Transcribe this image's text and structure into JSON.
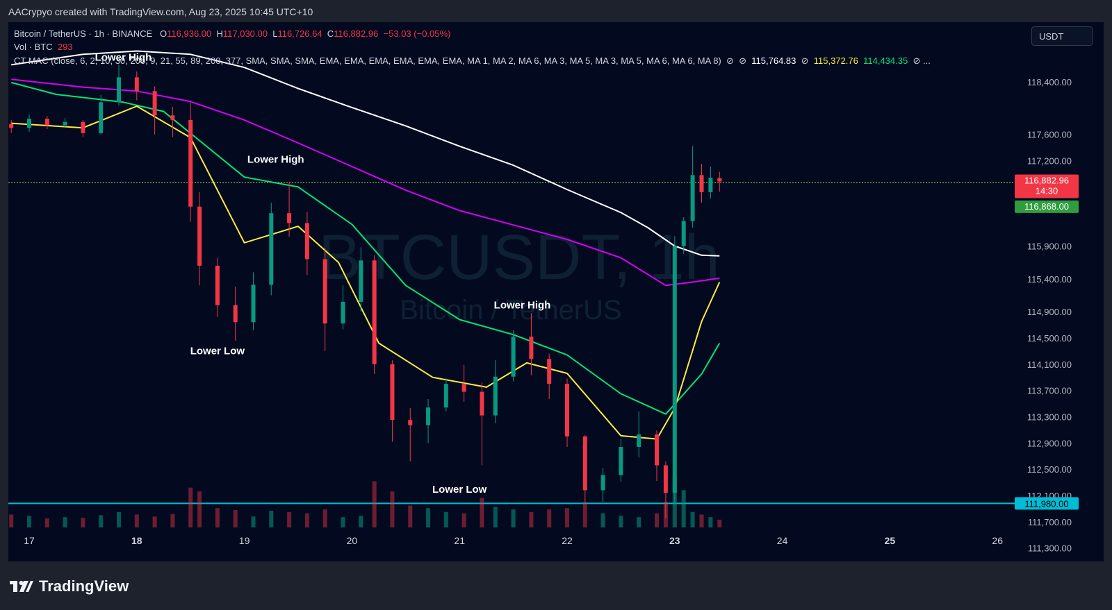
{
  "header": {
    "attribution": "AACrypyo created with TradingView.com, Aug 23, 2025 10:45 UTC+10"
  },
  "legend": {
    "symbol": "Bitcoin / TetherUS · 1h · BINANCE",
    "o_label": "O",
    "o_value": "116,936.00",
    "h_label": "H",
    "h_value": "117,030.00",
    "l_label": "L",
    "l_value": "116,726.64",
    "c_label": "C",
    "c_value": "116,882.96",
    "change": "−53.03 (−0.05%)",
    "vol_label": "Vol · BTC",
    "vol_value": "293",
    "indicator": "CT MAC (close, 6, 2, 10, 30, 200, 9, 21, 55, 89, 200, 377, SMA, SMA, SMA, EMA, EMA, EMA, EMA, EMA, EMA, MA 1, MA 2, MA 6, MA 3, MA 5, MA 3, MA 5, MA 6, MA 6, MA 8)",
    "ma_values": [
      "115,764.83",
      "115,372.76",
      "114,434.35"
    ],
    "ellipsis": "..."
  },
  "currency_button": "USDT",
  "watermark": {
    "line1": "BTCUSDT, 1h",
    "line2": "Bitcoin / TetherUS"
  },
  "brand": "TradingView",
  "colors": {
    "up": "#089981",
    "down": "#f23645",
    "ema_fast": "#ffeb3b",
    "ema_mid": "#00e676",
    "ema_slow": "#d500f9",
    "sma_long": "#ffffff",
    "support": "#00bcd4",
    "resistance": "#8bc34a"
  },
  "chart_data": {
    "type": "candlestick",
    "title": "",
    "x_axis_labels": [
      "17",
      "18",
      "19",
      "20",
      "21",
      "22",
      "23",
      "24",
      "25",
      "26"
    ],
    "y_axis_labels": [
      "118,400.00",
      "117,600.00",
      "117,200.00",
      "115,900.00",
      "115,400.00",
      "114,900.00",
      "114,500.00",
      "114,100.00",
      "113,700.00",
      "113,300.00",
      "112,900.00",
      "112,500.00",
      "112,100.00",
      "111,700.00",
      "111,300.00"
    ],
    "ylim": [
      111000,
      118800
    ],
    "annotations": [
      {
        "text": "Lower High",
        "x": "Aug 17 21:00",
        "y": 118720
      },
      {
        "text": "Lower High",
        "x": "Aug 19 07:00",
        "y": 117170
      },
      {
        "text": "Lower Low",
        "x": "Aug 18 18:00",
        "y": 114250
      },
      {
        "text": "Lower High",
        "x": "Aug 21 14:00",
        "y": 114950
      },
      {
        "text": "Lower Low",
        "x": "Aug 21 00:00",
        "y": 112140
      }
    ],
    "levels": [
      {
        "price": 116868.0,
        "label": "116,868.00",
        "style": "dotted",
        "color": "#8bc34a"
      },
      {
        "price": 111980.0,
        "label": "111,980.00",
        "style": "solid",
        "color": "#00bcd4"
      }
    ],
    "last_price": {
      "value": "116,882.96",
      "countdown": "14:30"
    },
    "series": [
      {
        "type": "sma",
        "color": "#ffffff",
        "points": [
          [
            "Aug 16 20:00",
            118660
          ],
          [
            "Aug 17 12:00",
            118820
          ],
          [
            "Aug 18 00:00",
            118870
          ],
          [
            "Aug 18 12:00",
            118820
          ],
          [
            "Aug 19 00:00",
            118620
          ],
          [
            "Aug 19 12:00",
            118300
          ],
          [
            "Aug 20 00:00",
            118010
          ],
          [
            "Aug 20 12:00",
            117730
          ],
          [
            "Aug 21 00:00",
            117420
          ],
          [
            "Aug 21 12:00",
            117130
          ],
          [
            "Aug 22 00:00",
            116760
          ],
          [
            "Aug 22 12:00",
            116410
          ],
          [
            "Aug 22 18:00",
            116180
          ],
          [
            "Aug 23 00:00",
            115900
          ],
          [
            "Aug 23 06:00",
            115760
          ],
          [
            "Aug 23 10:00",
            115750
          ]
        ]
      },
      {
        "type": "ema",
        "color": "#d500f9",
        "points": [
          [
            "Aug 16 20:00",
            118440
          ],
          [
            "Aug 17 12:00",
            118320
          ],
          [
            "Aug 18 00:00",
            118260
          ],
          [
            "Aug 18 12:00",
            118100
          ],
          [
            "Aug 19 00:00",
            117820
          ],
          [
            "Aug 19 12:00",
            117470
          ],
          [
            "Aug 20 00:00",
            117110
          ],
          [
            "Aug 20 12:00",
            116750
          ],
          [
            "Aug 21 00:00",
            116440
          ],
          [
            "Aug 21 12:00",
            116220
          ],
          [
            "Aug 22 00:00",
            116000
          ],
          [
            "Aug 22 12:00",
            115720
          ],
          [
            "Aug 22 22:00",
            115300
          ],
          [
            "Aug 23 04:00",
            115350
          ],
          [
            "Aug 23 10:00",
            115410
          ]
        ]
      },
      {
        "type": "ema",
        "color": "#00e676",
        "points": [
          [
            "Aug 16 20:00",
            118390
          ],
          [
            "Aug 17 06:00",
            118210
          ],
          [
            "Aug 17 21:00",
            118090
          ],
          [
            "Aug 18 06:00",
            117950
          ],
          [
            "Aug 18 15:00",
            117450
          ],
          [
            "Aug 19 00:00",
            116950
          ],
          [
            "Aug 19 12:00",
            116800
          ],
          [
            "Aug 20 00:00",
            116230
          ],
          [
            "Aug 20 12:00",
            115300
          ],
          [
            "Aug 21 00:00",
            114780
          ],
          [
            "Aug 21 12:00",
            114550
          ],
          [
            "Aug 22 00:00",
            114240
          ],
          [
            "Aug 22 12:00",
            113650
          ],
          [
            "Aug 22 22:00",
            113340
          ],
          [
            "Aug 23 06:00",
            113950
          ],
          [
            "Aug 23 10:00",
            114420
          ]
        ]
      },
      {
        "type": "ema",
        "color": "#ffeb3b",
        "points": [
          [
            "Aug 16 20:00",
            117770
          ],
          [
            "Aug 17 12:00",
            117700
          ],
          [
            "Aug 18 00:00",
            118030
          ],
          [
            "Aug 18 12:00",
            117550
          ],
          [
            "Aug 19 00:00",
            115950
          ],
          [
            "Aug 19 12:00",
            116200
          ],
          [
            "Aug 19 21:00",
            115650
          ],
          [
            "Aug 20 06:00",
            114420
          ],
          [
            "Aug 20 18:00",
            113900
          ],
          [
            "Aug 21 06:00",
            113750
          ],
          [
            "Aug 21 15:00",
            114120
          ],
          [
            "Aug 22 00:00",
            113960
          ],
          [
            "Aug 22 12:00",
            113010
          ],
          [
            "Aug 22 20:00",
            112960
          ],
          [
            "Aug 23 00:00",
            113430
          ],
          [
            "Aug 23 06:00",
            114750
          ],
          [
            "Aug 23 10:00",
            115350
          ]
        ]
      }
    ],
    "candles": [
      [
        "Aug 16 20:00",
        117760,
        117700,
        117620,
        117820
      ],
      [
        "Aug 17 00:00",
        117700,
        117840,
        117640,
        117900
      ],
      [
        "Aug 17 04:00",
        117840,
        117740,
        117680,
        117880
      ],
      [
        "Aug 17 08:00",
        117740,
        117790,
        117700,
        117850
      ],
      [
        "Aug 17 12:00",
        117790,
        117620,
        117560,
        117820
      ],
      [
        "Aug 17 16:00",
        117620,
        118090,
        117600,
        118200
      ],
      [
        "Aug 17 20:00",
        118090,
        118470,
        118040,
        118660
      ],
      [
        "Aug 18 00:00",
        118470,
        118260,
        118120,
        118560
      ],
      [
        "Aug 18 04:00",
        118260,
        117890,
        117600,
        118330
      ],
      [
        "Aug 18 08:00",
        117890,
        117820,
        117560,
        118020
      ],
      [
        "Aug 18 12:00",
        117820,
        116500,
        116270,
        118080
      ],
      [
        "Aug 18 14:00",
        116500,
        115600,
        115300,
        116720
      ],
      [
        "Aug 18 18:00",
        115600,
        115000,
        114820,
        115720
      ],
      [
        "Aug 18 22:00",
        115000,
        114740,
        114460,
        115280
      ],
      [
        "Aug 19 02:00",
        114740,
        115310,
        114620,
        115500
      ],
      [
        "Aug 19 06:00",
        115310,
        116400,
        115150,
        116560
      ],
      [
        "Aug 19 10:00",
        116400,
        116250,
        116040,
        116880
      ],
      [
        "Aug 19 14:00",
        116250,
        115700,
        115460,
        116420
      ],
      [
        "Aug 19 18:00",
        115700,
        114720,
        114300,
        115860
      ],
      [
        "Aug 19 22:00",
        114720,
        115050,
        114630,
        115300
      ],
      [
        "Aug 20 02:00",
        115050,
        115680,
        114900,
        115880
      ],
      [
        "Aug 20 05:00",
        115680,
        114100,
        113950,
        115760
      ],
      [
        "Aug 20 09:00",
        114100,
        113250,
        112920,
        114160
      ],
      [
        "Aug 20 13:00",
        113250,
        113170,
        112620,
        113430
      ],
      [
        "Aug 20 17:00",
        113170,
        113440,
        112900,
        113570
      ],
      [
        "Aug 20 21:00",
        113440,
        113800,
        113380,
        113890
      ],
      [
        "Aug 21 01:00",
        113800,
        113680,
        113530,
        114090
      ],
      [
        "Aug 21 05:00",
        113680,
        113320,
        112560,
        113820
      ],
      [
        "Aug 21 08:00",
        113320,
        113910,
        113200,
        114160
      ],
      [
        "Aug 21 12:00",
        113910,
        114520,
        113840,
        114620
      ],
      [
        "Aug 21 16:00",
        114520,
        114180,
        113930,
        114880
      ],
      [
        "Aug 21 20:00",
        114180,
        113800,
        113570,
        114260
      ],
      [
        "Aug 22 00:00",
        113800,
        113000,
        112840,
        113880
      ],
      [
        "Aug 22 04:00",
        113000,
        112180,
        112000,
        113020
      ],
      [
        "Aug 22 08:00",
        112180,
        112410,
        112000,
        112520
      ],
      [
        "Aug 22 12:00",
        112410,
        112840,
        112310,
        112960
      ],
      [
        "Aug 22 16:00",
        112840,
        113030,
        112680,
        113380
      ],
      [
        "Aug 22 20:00",
        113030,
        112560,
        112320,
        113090
      ],
      [
        "Aug 22 22:00",
        112560,
        112140,
        111750,
        112620
      ],
      [
        "Aug 23 00:00",
        112140,
        115900,
        111980,
        116050
      ],
      [
        "Aug 23 02:00",
        115900,
        116280,
        115780,
        116340
      ],
      [
        "Aug 23 04:00",
        116280,
        116980,
        116180,
        117420
      ],
      [
        "Aug 23 06:00",
        116980,
        116720,
        116560,
        117150
      ],
      [
        "Aug 23 08:00",
        116720,
        116940,
        116620,
        117110
      ],
      [
        "Aug 23 10:00",
        116936,
        116883,
        116727,
        117030
      ]
    ],
    "volume": [
      [
        "Aug 16 20:00",
        20
      ],
      [
        "Aug 17 00:00",
        18
      ],
      [
        "Aug 17 04:00",
        14
      ],
      [
        "Aug 17 08:00",
        16
      ],
      [
        "Aug 17 12:00",
        15
      ],
      [
        "Aug 17 16:00",
        19
      ],
      [
        "Aug 17 20:00",
        24
      ],
      [
        "Aug 18 00:00",
        20
      ],
      [
        "Aug 18 04:00",
        17
      ],
      [
        "Aug 18 08:00",
        21
      ],
      [
        "Aug 18 12:00",
        62
      ],
      [
        "Aug 18 14:00",
        56
      ],
      [
        "Aug 18 18:00",
        30
      ],
      [
        "Aug 18 22:00",
        27
      ],
      [
        "Aug 19 02:00",
        17
      ],
      [
        "Aug 19 06:00",
        26
      ],
      [
        "Aug 19 10:00",
        24
      ],
      [
        "Aug 19 14:00",
        22
      ],
      [
        "Aug 19 18:00",
        28
      ],
      [
        "Aug 19 22:00",
        16
      ],
      [
        "Aug 20 02:00",
        18
      ],
      [
        "Aug 20 05:00",
        72
      ],
      [
        "Aug 20 09:00",
        56
      ],
      [
        "Aug 20 13:00",
        34
      ],
      [
        "Aug 20 17:00",
        30
      ],
      [
        "Aug 20 21:00",
        24
      ],
      [
        "Aug 21 01:00",
        22
      ],
      [
        "Aug 21 05:00",
        46
      ],
      [
        "Aug 21 08:00",
        32
      ],
      [
        "Aug 21 12:00",
        28
      ],
      [
        "Aug 21 16:00",
        24
      ],
      [
        "Aug 21 20:00",
        28
      ],
      [
        "Aug 22 00:00",
        30
      ],
      [
        "Aug 22 04:00",
        40
      ],
      [
        "Aug 22 08:00",
        22
      ],
      [
        "Aug 22 12:00",
        18
      ],
      [
        "Aug 22 16:00",
        16
      ],
      [
        "Aug 22 20:00",
        22
      ],
      [
        "Aug 22 22:00",
        40
      ],
      [
        "Aug 23 00:00",
        80
      ],
      [
        "Aug 23 02:00",
        58
      ],
      [
        "Aug 23 04:00",
        24
      ],
      [
        "Aug 23 06:00",
        20
      ],
      [
        "Aug 23 08:00",
        16
      ],
      [
        "Aug 23 10:00",
        12
      ]
    ]
  }
}
